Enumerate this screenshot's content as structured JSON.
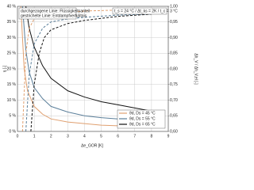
{
  "chart_data": {
    "type": "line",
    "y_label": "η [-]",
    "y2_label": "Δh_V / Δh_V,el [-]",
    "x_label": "Δe_GOR [K]",
    "annotations": [
      "durchgezogene Linie: Flüssigkeitsanteil",
      "gestrichelte Linie: Entdampfverhältnis",
      "t_s = 24 °C / Δt_ks = 2K / t_c = 3 °C"
    ],
    "xlim": [
      0,
      9
    ],
    "xticks": [
      0,
      1,
      2,
      3,
      4,
      5,
      6,
      7,
      8,
      9
    ],
    "ylim": [
      0,
      40
    ],
    "yticks": [
      {
        "value": 0,
        "label": "0 %"
      },
      {
        "value": 5,
        "label": "5 %"
      },
      {
        "value": 10,
        "label": "10 %"
      },
      {
        "value": 15,
        "label": "15 %"
      },
      {
        "value": 20,
        "label": "20 %"
      },
      {
        "value": 25,
        "label": "25 %"
      },
      {
        "value": 30,
        "label": "30 %"
      },
      {
        "value": 35,
        "label": "35 %"
      },
      {
        "value": 40,
        "label": "40 %"
      }
    ],
    "y2lim": [
      0.6,
      1.0
    ],
    "y2ticks": [
      {
        "value": 0.6,
        "label": "0,60"
      },
      {
        "value": 0.65,
        "label": "0,65"
      },
      {
        "value": 0.7,
        "label": "0,70"
      },
      {
        "value": 0.75,
        "label": "0,75"
      },
      {
        "value": 0.8,
        "label": "0,80"
      },
      {
        "value": 0.85,
        "label": "0,85"
      },
      {
        "value": 0.9,
        "label": "0,90"
      },
      {
        "value": 0.95,
        "label": "0,95"
      },
      {
        "value": 1.0,
        "label": "1,00"
      }
    ],
    "grid": true,
    "legend": "lower right",
    "series": [
      {
        "name": "ϑd, Ds = 45 °C",
        "color": "#e0a070",
        "dashed": false,
        "x": [
          0.2,
          0.4,
          0.6,
          1,
          1.5,
          2,
          3,
          4,
          5,
          6,
          7,
          8
        ],
        "values": [
          40,
          20,
          13,
          8,
          5.5,
          4,
          3,
          2.5,
          2,
          1.8,
          1.6,
          1.5
        ]
      },
      {
        "name": "ϑd, Ds = 55 °C",
        "color": "#5b7f9a",
        "dashed": false,
        "x": [
          0.3,
          0.5,
          0.7,
          1,
          1.5,
          2,
          3,
          4,
          5,
          6,
          7,
          8
        ],
        "values": [
          40,
          26,
          19,
          14,
          10.5,
          8,
          6.2,
          5,
          4.4,
          4,
          3.7,
          3.5
        ]
      },
      {
        "name": "ϑd, Ds = 65 °C",
        "color": "#111111",
        "dashed": false,
        "x": [
          0.5,
          0.7,
          1,
          1.5,
          2,
          3,
          4,
          5,
          6,
          7,
          8
        ],
        "values": [
          40,
          33,
          27,
          21,
          17,
          13,
          11,
          9.5,
          8.5,
          7.5,
          6.5
        ]
      },
      {
        "color": "#e0a070",
        "dashed": true,
        "axis": "y2",
        "x": [
          0.3,
          0.5,
          0.7,
          1,
          2,
          3,
          4,
          6,
          8
        ],
        "values": [
          0.6,
          0.85,
          0.93,
          0.96,
          0.975,
          0.98,
          0.985,
          0.988,
          0.99
        ]
      },
      {
        "color": "#5b7f9a",
        "dashed": true,
        "axis": "y2",
        "x": [
          0.5,
          0.7,
          1,
          1.5,
          2,
          3,
          4,
          6,
          8
        ],
        "values": [
          0.6,
          0.78,
          0.88,
          0.93,
          0.95,
          0.96,
          0.965,
          0.972,
          0.975
        ]
      },
      {
        "color": "#111111",
        "dashed": true,
        "axis": "y2",
        "x": [
          0.8,
          1,
          1.3,
          1.6,
          2,
          3,
          4,
          6,
          8
        ],
        "values": [
          0.6,
          0.75,
          0.85,
          0.9,
          0.925,
          0.945,
          0.955,
          0.968,
          0.975
        ]
      }
    ]
  }
}
